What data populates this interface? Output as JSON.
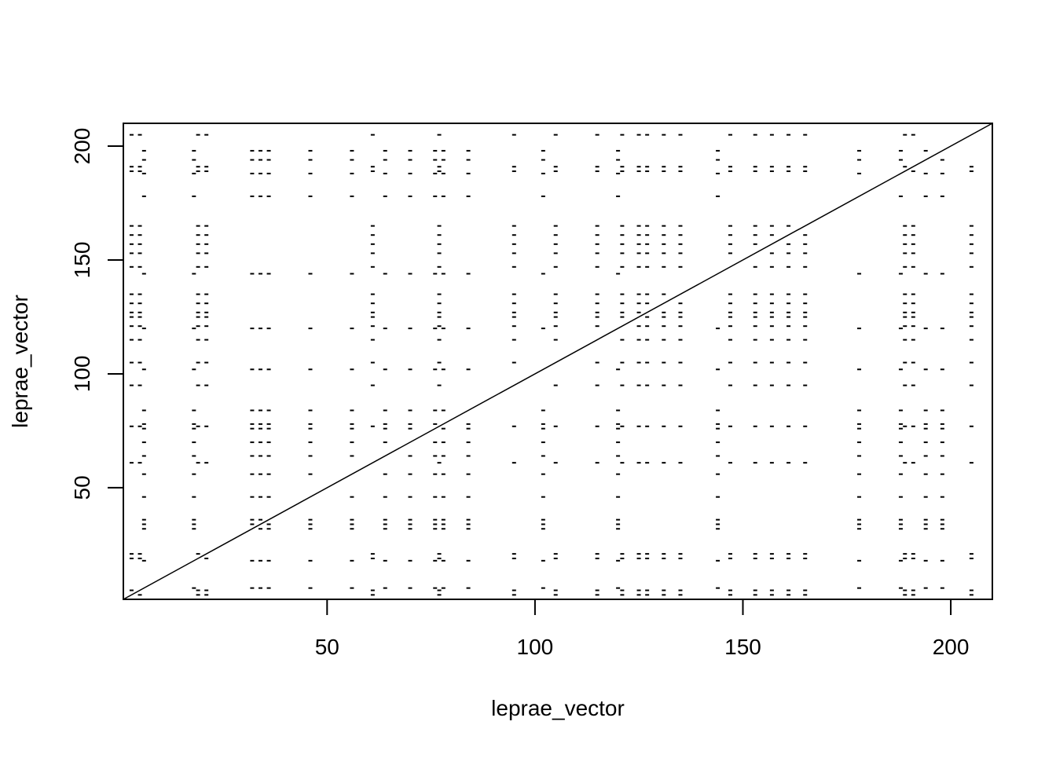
{
  "chart_data": {
    "type": "heatmap",
    "subtype": "dot-plot",
    "title": "",
    "xlabel": "leprae_vector",
    "ylabel": "leprae_vector",
    "xlim": [
      1,
      210
    ],
    "ylim": [
      1,
      210
    ],
    "x_ticks": [
      50,
      100,
      150,
      200
    ],
    "y_ticks": [
      50,
      100,
      150,
      200
    ],
    "x_tick_labels": [
      "50",
      "100",
      "150",
      "200"
    ],
    "y_tick_labels": [
      "50",
      "100",
      "150",
      "200"
    ],
    "grid": false,
    "legend": "none",
    "diagonal": true,
    "match_density": 0.18,
    "random_seed": 7,
    "mark_color": "#000000"
  }
}
